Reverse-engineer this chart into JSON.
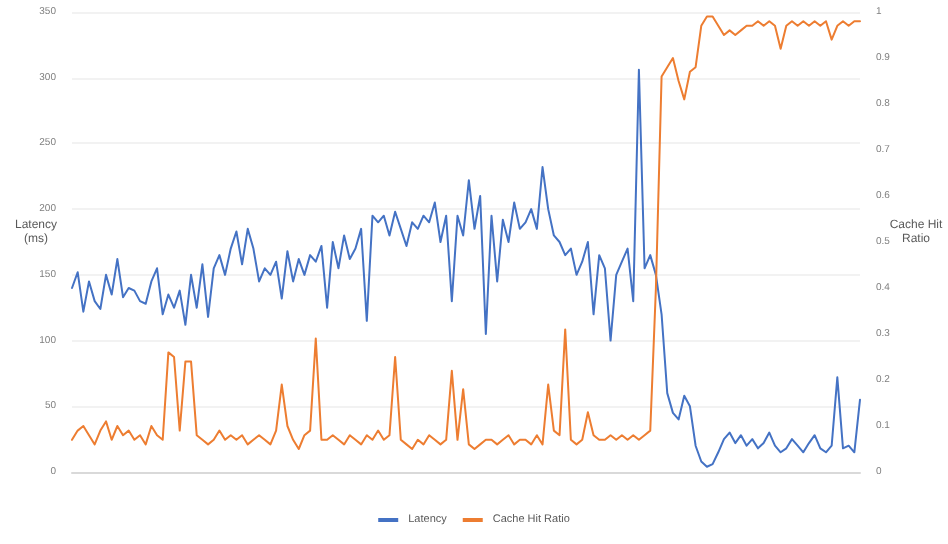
{
  "chart_data": {
    "type": "line",
    "ylabel": "Latency (ms)",
    "y2label": "Cache Hit Ratio",
    "categories": [
      null,
      null,
      null,
      null,
      null,
      null,
      null,
      null,
      null,
      null,
      null,
      null,
      null,
      null,
      null,
      null,
      null,
      null,
      null,
      null,
      null,
      null,
      null,
      null,
      null,
      null,
      null,
      null,
      null,
      null,
      null,
      null,
      null,
      null,
      null,
      null,
      null,
      null,
      null,
      null,
      null,
      null,
      null,
      null,
      null,
      null,
      null,
      null,
      null,
      null,
      null,
      null,
      null,
      null,
      null,
      null,
      null,
      null,
      null,
      null,
      null,
      null,
      null,
      null,
      null,
      null,
      null,
      null,
      null,
      null,
      null,
      null,
      null,
      null,
      null,
      null,
      null,
      null,
      null,
      null,
      null,
      null,
      null,
      null,
      null,
      null,
      null,
      null,
      null,
      null,
      null,
      null,
      null,
      null,
      null,
      null,
      null,
      null,
      null,
      null,
      null,
      null,
      null,
      null,
      null,
      null,
      null,
      null,
      null,
      null,
      null,
      null,
      null,
      null,
      null,
      null,
      null,
      null,
      null,
      null,
      null,
      null,
      null,
      null,
      null,
      null,
      null,
      null,
      null,
      null,
      null,
      null,
      null,
      null,
      null,
      null,
      null,
      null,
      null,
      null
    ],
    "series": [
      {
        "name": "Latency",
        "color": "#4472c4",
        "values": [
          140,
          152,
          122,
          145,
          130,
          124,
          150,
          135,
          162,
          133,
          140,
          138,
          130,
          128,
          145,
          155,
          120,
          135,
          125,
          138,
          112,
          150,
          125,
          158,
          118,
          155,
          165,
          150,
          170,
          183,
          158,
          185,
          170,
          145,
          155,
          150,
          160,
          132,
          168,
          145,
          162,
          150,
          165,
          160,
          172,
          125,
          175,
          155,
          180,
          162,
          170,
          185,
          115,
          195,
          190,
          195,
          180,
          198,
          185,
          172,
          190,
          185,
          195,
          190,
          205,
          175,
          195,
          130,
          195,
          180,
          222,
          185,
          210,
          105,
          195,
          145,
          192,
          175,
          205,
          185,
          190,
          200,
          185,
          232,
          200,
          180,
          175,
          165,
          170,
          150,
          160,
          175,
          120,
          165,
          155,
          100,
          150,
          160,
          170,
          130,
          306,
          155,
          165,
          150,
          120,
          60,
          45,
          40,
          58,
          50,
          20,
          8,
          4,
          6,
          15,
          25,
          30,
          22,
          28,
          20,
          25,
          18,
          22,
          30,
          20,
          15,
          18,
          25,
          20,
          15,
          22,
          28,
          18,
          15,
          20,
          72,
          18,
          20,
          15,
          55
        ]
      },
      {
        "name": "Cache Hit Ratio",
        "color": "#ed7d31",
        "axis": "y2",
        "values": [
          0.07,
          0.09,
          0.1,
          0.08,
          0.06,
          0.09,
          0.11,
          0.07,
          0.1,
          0.08,
          0.09,
          0.07,
          0.08,
          0.06,
          0.1,
          0.08,
          0.07,
          0.26,
          0.25,
          0.09,
          0.24,
          0.24,
          0.08,
          0.07,
          0.06,
          0.07,
          0.09,
          0.07,
          0.08,
          0.07,
          0.08,
          0.06,
          0.07,
          0.08,
          0.07,
          0.06,
          0.09,
          0.19,
          0.1,
          0.07,
          0.05,
          0.08,
          0.09,
          0.29,
          0.07,
          0.07,
          0.08,
          0.07,
          0.06,
          0.08,
          0.07,
          0.06,
          0.08,
          0.07,
          0.09,
          0.07,
          0.08,
          0.25,
          0.07,
          0.06,
          0.05,
          0.07,
          0.06,
          0.08,
          0.07,
          0.06,
          0.07,
          0.22,
          0.07,
          0.18,
          0.06,
          0.05,
          0.06,
          0.07,
          0.07,
          0.06,
          0.07,
          0.08,
          0.06,
          0.07,
          0.07,
          0.06,
          0.08,
          0.06,
          0.19,
          0.09,
          0.08,
          0.31,
          0.07,
          0.06,
          0.07,
          0.13,
          0.08,
          0.07,
          0.07,
          0.08,
          0.07,
          0.08,
          0.07,
          0.08,
          0.07,
          0.08,
          0.09,
          0.4,
          0.86,
          0.88,
          0.9,
          0.85,
          0.81,
          0.87,
          0.88,
          0.97,
          0.99,
          0.99,
          0.97,
          0.95,
          0.96,
          0.95,
          0.96,
          0.97,
          0.97,
          0.98,
          0.97,
          0.98,
          0.97,
          0.92,
          0.97,
          0.98,
          0.97,
          0.98,
          0.97,
          0.98,
          0.97,
          0.98,
          0.94,
          0.97,
          0.98,
          0.97,
          0.98,
          0.98
        ]
      }
    ],
    "ylim": [
      0,
      350
    ],
    "yticks": [
      0,
      50,
      100,
      150,
      200,
      250,
      300,
      350
    ],
    "y2lim": [
      0,
      1
    ],
    "y2ticks": [
      0,
      0.1,
      0.2,
      0.3,
      0.4,
      0.5,
      0.6,
      0.7,
      0.8,
      0.9,
      1
    ],
    "grid": "y",
    "legend": "bottom",
    "marker": "none",
    "line_style": "solid"
  }
}
